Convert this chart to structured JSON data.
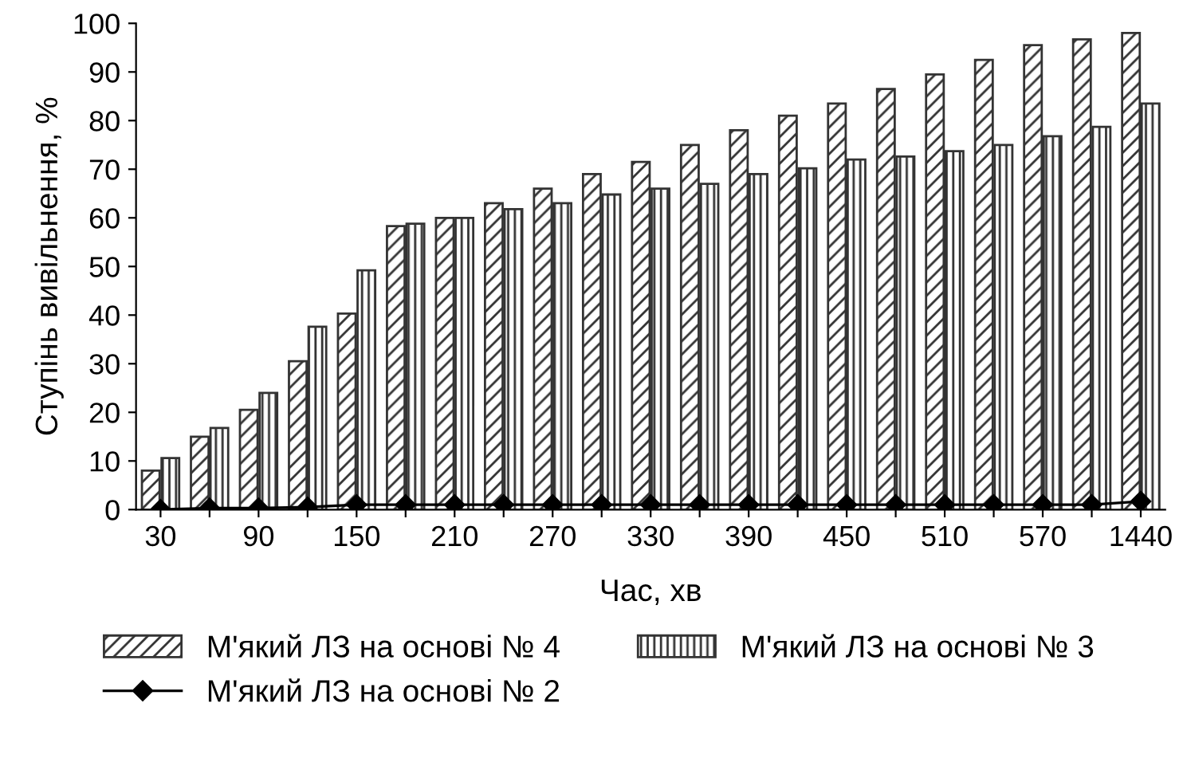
{
  "chart_data": {
    "type": "bar",
    "xlabel": "Час, хв",
    "ylabel": "Ступінь вивільнення, %",
    "categories": [
      "30",
      null,
      "90",
      null,
      "150",
      null,
      "210",
      null,
      "270",
      null,
      "330",
      null,
      "390",
      null,
      "450",
      null,
      "510",
      null,
      "570",
      null,
      "1440"
    ],
    "series": [
      {
        "name": "М'який ЛЗ на основі № 4",
        "color": "#333333",
        "values": [
          8,
          15,
          20.5,
          30.5,
          40.3,
          58.3,
          60,
          63,
          66,
          69,
          71.5,
          75,
          78,
          81,
          83.5,
          86.5,
          89.5,
          92.5,
          95.5,
          96.7,
          98
        ]
      },
      {
        "name": "М'який ЛЗ на основі № 3",
        "color": "#333333",
        "values": [
          10.6,
          16.8,
          24,
          37.6,
          49.2,
          58.8,
          60,
          61.8,
          63,
          64.8,
          66,
          67,
          69,
          70.2,
          72,
          72.6,
          73.7,
          75,
          76.8,
          78.7,
          83.5
        ]
      },
      {
        "name": "М'який ЛЗ на основі № 2",
        "type": "line",
        "color": "#000000",
        "marker": "diamond",
        "line_style": "solid",
        "values": [
          0,
          0.3,
          0.3,
          0.5,
          1,
          1,
          1,
          1,
          1,
          1,
          1,
          1,
          1,
          1,
          1,
          1,
          1,
          1,
          1,
          1,
          1.7
        ]
      }
    ],
    "ylim": [
      0,
      100
    ],
    "yticks": [
      0,
      10,
      20,
      30,
      40,
      50,
      60,
      70,
      80,
      90,
      100
    ],
    "grid": false,
    "legend": "bottom"
  }
}
